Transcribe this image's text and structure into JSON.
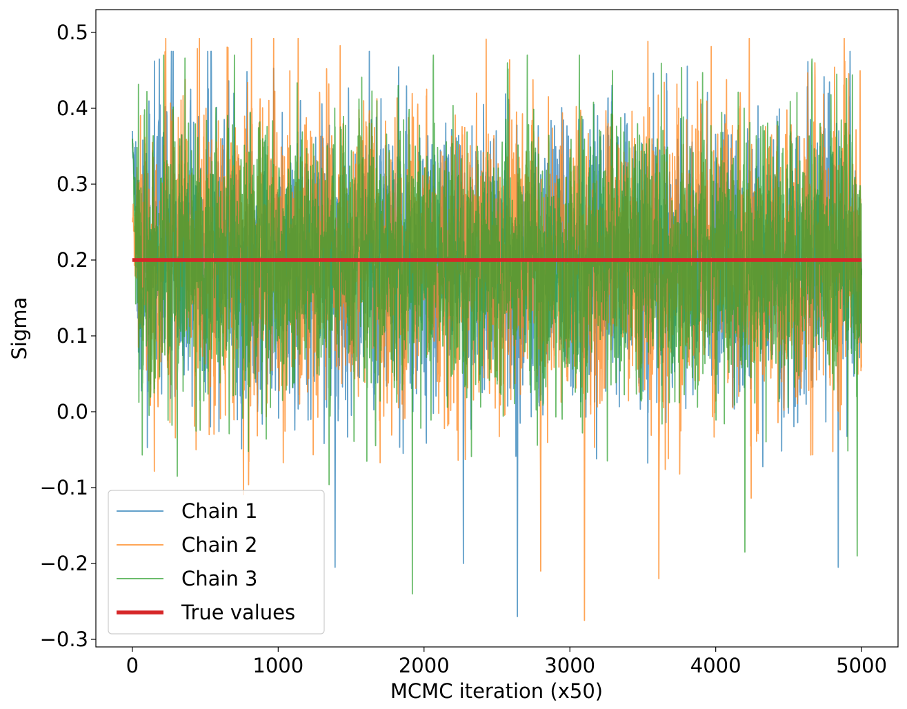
{
  "chart_data": {
    "type": "line",
    "title": "",
    "xlabel": "MCMC iteration (x50)",
    "ylabel": "Sigma",
    "xlim": [
      -250,
      5250
    ],
    "ylim": [
      -0.31,
      0.53
    ],
    "x_ticks": [
      0,
      1000,
      2000,
      3000,
      4000,
      5000
    ],
    "x_tick_labels": [
      "0",
      "1000",
      "2000",
      "3000",
      "4000",
      "5000"
    ],
    "y_ticks": [
      -0.3,
      -0.2,
      -0.1,
      0.0,
      0.1,
      0.2,
      0.3,
      0.4,
      0.5
    ],
    "y_tick_labels": [
      "−0.3",
      "−0.2",
      "−0.1",
      "0.0",
      "0.1",
      "0.2",
      "0.3",
      "0.4",
      "0.5"
    ],
    "grid": false,
    "legend_position": "lower-left",
    "x_range": [
      0,
      5000
    ],
    "series": [
      {
        "name": "Chain 1",
        "color": "#1f77b4",
        "mean": 0.2,
        "spread": 0.085,
        "start": 0.37,
        "max": 0.475,
        "min": -0.27,
        "notable_points": [
          [
            280,
            0.475
          ],
          [
            2640,
            -0.27
          ],
          [
            1390,
            -0.205
          ],
          [
            4840,
            -0.205
          ],
          [
            2270,
            -0.2
          ]
        ]
      },
      {
        "name": "Chain 2",
        "color": "#ff7f0e",
        "mean": 0.2,
        "spread": 0.09,
        "start": 0.25,
        "max": 0.492,
        "min": -0.275,
        "notable_points": [
          [
            4230,
            0.492
          ],
          [
            3100,
            -0.275
          ],
          [
            3610,
            -0.22
          ],
          [
            2800,
            -0.21
          ],
          [
            4680,
            0.46
          ]
        ]
      },
      {
        "name": "Chain 3",
        "color": "#2ca02c",
        "mean": 0.2,
        "spread": 0.085,
        "start": 0.36,
        "max": 0.47,
        "min": -0.24,
        "notable_points": [
          [
            700,
            0.47
          ],
          [
            1920,
            -0.24
          ],
          [
            4200,
            -0.185
          ],
          [
            4970,
            -0.19
          ],
          [
            4830,
            0.445
          ]
        ]
      },
      {
        "name": "True values",
        "color": "#d62728",
        "constant": 0.2,
        "x": [
          0,
          5000
        ],
        "y": [
          0.2,
          0.2
        ]
      }
    ]
  }
}
